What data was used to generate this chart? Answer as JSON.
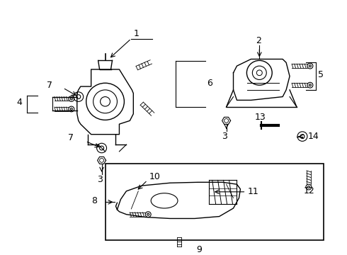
{
  "background_color": "#ffffff",
  "line_color": "#000000",
  "text_color": "#000000",
  "fig_width": 4.9,
  "fig_height": 3.6,
  "dpi": 100
}
